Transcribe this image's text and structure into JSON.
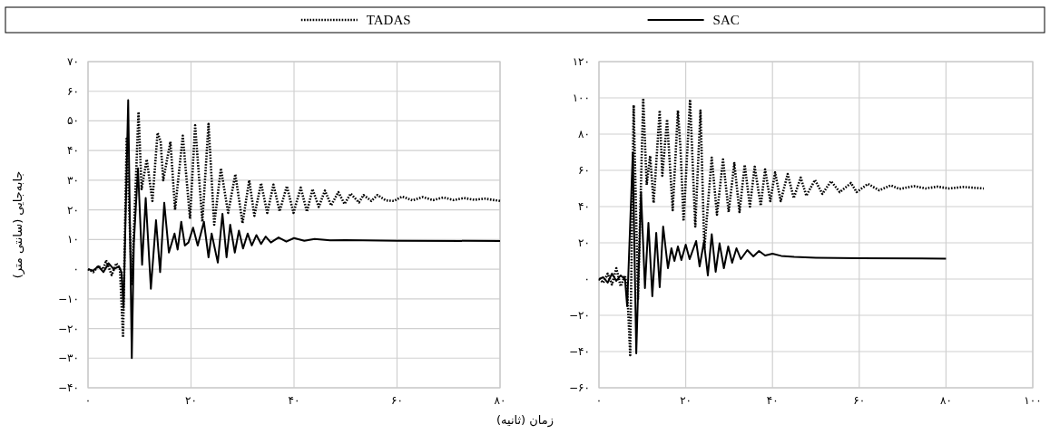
{
  "chart_data": [
    {
      "type": "line",
      "ylabel": "جابه‌جایی (سانتی متر)",
      "xlabel": "زمان (ثانیه)",
      "legend": "top",
      "grid": true,
      "marker": "none",
      "xlim": [
        0,
        80
      ],
      "xticks": [
        {
          "value": 0,
          "label": "۰"
        },
        {
          "value": 20,
          "label": "۲۰"
        },
        {
          "value": 40,
          "label": "۴۰"
        },
        {
          "value": 60,
          "label": "۶۰"
        },
        {
          "value": 80,
          "label": "۸۰"
        }
      ],
      "ylim": [
        -40,
        70
      ],
      "yticks": [
        {
          "value": -40,
          "label": "−۴۰"
        },
        {
          "value": -30,
          "label": "−۳۰"
        },
        {
          "value": -20,
          "label": "−۲۰"
        },
        {
          "value": -10,
          "label": "−۱۰"
        },
        {
          "value": 0,
          "label": "۰"
        },
        {
          "value": 10,
          "label": "۱۰"
        },
        {
          "value": 20,
          "label": "۲۰"
        },
        {
          "value": 30,
          "label": "۳۰"
        },
        {
          "value": 40,
          "label": "۴۰"
        },
        {
          "value": 50,
          "label": "۵۰"
        },
        {
          "value": 60,
          "label": "۶۰"
        },
        {
          "value": 70,
          "label": "۷۰"
        }
      ],
      "series": [
        {
          "name": "TADAS",
          "color": "#000000",
          "line_style": "dotted",
          "x": [
            0,
            1,
            2,
            3,
            3.5,
            4.6,
            5.5,
            6.2,
            6.8,
            7.5,
            8.5,
            9.8,
            10.4,
            11.4,
            12.5,
            13.5,
            14.1,
            14.6,
            16,
            16.9,
            18.4,
            19.8,
            20.8,
            22.2,
            23.4,
            24.5,
            25.8,
            27.2,
            28.6,
            30,
            31.3,
            32.3,
            33.6,
            34.8,
            36,
            37.2,
            38.6,
            39.9,
            41.3,
            42.5,
            43.6,
            44.8,
            46,
            47.2,
            48.6,
            49.8,
            51,
            52.6,
            53.5,
            55,
            56.2,
            57.8,
            59.4,
            61,
            63,
            65,
            67,
            69,
            71,
            73,
            75,
            77,
            80
          ],
          "values": [
            0,
            -1,
            1,
            0,
            3,
            -2,
            2,
            0,
            -23,
            44,
            -5,
            53,
            27,
            37,
            23,
            46,
            43,
            30,
            43,
            20,
            45,
            17,
            48.5,
            16,
            49,
            15,
            34,
            19,
            32,
            15.5,
            30,
            18,
            29,
            19,
            28.5,
            19.5,
            28,
            19,
            27.5,
            19.4,
            27,
            21,
            26.5,
            21.5,
            26,
            22,
            25.5,
            22.5,
            25,
            23,
            25,
            23.2,
            23,
            24.5,
            23.2,
            24.3,
            23.3,
            24.2,
            23.3,
            24,
            23.4,
            23.8,
            23
          ]
        },
        {
          "name": "SAC",
          "color": "#000000",
          "line_style": "solid",
          "x": [
            0,
            1,
            2,
            3,
            4,
            5,
            6,
            6.5,
            6.9,
            7.8,
            8.5,
            8.9,
            9.7,
            10.5,
            11.2,
            12.2,
            13.2,
            14,
            14.8,
            15.7,
            16.8,
            17.4,
            18.1,
            18.8,
            19.5,
            20.4,
            21.3,
            22.5,
            23.4,
            24,
            25.2,
            26.1,
            26.9,
            27.6,
            28.5,
            29.3,
            30.1,
            31,
            31.8,
            32.7,
            33.6,
            34.5,
            35.5,
            37,
            38.5,
            40,
            42,
            44,
            47,
            50,
            60,
            80
          ],
          "values": [
            0,
            -0.5,
            1,
            -1,
            2,
            0,
            1,
            -1,
            -13,
            57,
            -30,
            9,
            34,
            1.5,
            24,
            -6.6,
            16.5,
            -1,
            22.4,
            5.6,
            12,
            6.6,
            16,
            8,
            9,
            14,
            8,
            16,
            4,
            12,
            2.2,
            18.7,
            4,
            15,
            5.6,
            13,
            7,
            12,
            8,
            11.5,
            8.5,
            11,
            9,
            10.7,
            9.3,
            10.5,
            9.6,
            10.2,
            9.7,
            9.8,
            9.6,
            9.5
          ]
        }
      ]
    },
    {
      "type": "line",
      "grid": true,
      "marker": "none",
      "xlim": [
        0,
        100
      ],
      "xticks": [
        {
          "value": 0,
          "label": "۰"
        },
        {
          "value": 20,
          "label": "۲۰"
        },
        {
          "value": 40,
          "label": "۴۰"
        },
        {
          "value": 60,
          "label": "۶۰"
        },
        {
          "value": 80,
          "label": "۸۰"
        },
        {
          "value": 100,
          "label": "۱۰۰"
        }
      ],
      "ylim": [
        -60,
        120
      ],
      "yticks": [
        {
          "value": -60,
          "label": "−۶۰"
        },
        {
          "value": -40,
          "label": "−۴۰"
        },
        {
          "value": -20,
          "label": "−۲۰"
        },
        {
          "value": 0,
          "label": "۰"
        },
        {
          "value": 20,
          "label": "۲۰"
        },
        {
          "value": 40,
          "label": "۴۰"
        },
        {
          "value": 60,
          "label": "۶۰"
        },
        {
          "value": 80,
          "label": "۸۰"
        },
        {
          "value": 100,
          "label": "۱۰۰"
        },
        {
          "value": 120,
          "label": "۱۲۰"
        }
      ],
      "series": [
        {
          "color": "#000000",
          "line_style": "dotted",
          "x": [
            0,
            1,
            2,
            3,
            4,
            5,
            6,
            6.5,
            7.2,
            8,
            9,
            10.2,
            11,
            11.8,
            12.6,
            14,
            14.6,
            15.7,
            17,
            18.2,
            18.8,
            19.5,
            21,
            22.2,
            23.4,
            24.3,
            26,
            27.2,
            28.6,
            29.9,
            31.2,
            32.4,
            33.6,
            34.8,
            35.9,
            37.3,
            38.3,
            39.5,
            40.6,
            41.9,
            43.5,
            44.9,
            46.5,
            47.8,
            49.8,
            51.5,
            53.5,
            55.5,
            58.1,
            59.4,
            62,
            64.6,
            67.3,
            69.3,
            72.6,
            75.3,
            78,
            80.7,
            84,
            88.7
          ],
          "values": [
            0,
            -2,
            3,
            -3,
            6,
            -4,
            2,
            -5,
            -42,
            96,
            -11,
            99.7,
            52,
            68,
            42,
            93,
            57,
            88,
            38,
            93,
            72,
            32,
            99,
            29,
            93,
            17,
            67,
            35.5,
            66,
            37,
            64,
            37,
            63,
            40,
            62,
            40.5,
            60.5,
            43,
            58.8,
            43,
            58,
            44.7,
            56,
            46,
            54.7,
            47,
            54,
            48,
            53,
            48,
            52.5,
            49,
            51.7,
            49.7,
            51.3,
            50,
            51,
            50,
            50.8,
            50
          ]
        },
        {
          "color": "#000000",
          "line_style": "solid",
          "x": [
            0,
            1,
            2,
            3,
            4,
            5,
            6,
            6.5,
            7.8,
            8.6,
            9.7,
            10.6,
            11.4,
            12.3,
            13.2,
            14,
            14.8,
            15.9,
            16.7,
            17.4,
            18.2,
            19,
            20,
            20.9,
            22.4,
            23.2,
            24.2,
            25.1,
            26,
            26.9,
            27.8,
            28.8,
            29.8,
            30.7,
            31.7,
            32.7,
            34.2,
            35.6,
            36.9,
            38.3,
            40,
            42,
            45,
            50,
            60,
            80
          ],
          "values": [
            0,
            1,
            -2,
            3,
            -1,
            2,
            0,
            -15,
            69.7,
            -41,
            48,
            -5,
            31,
            -9.5,
            25.5,
            -4.5,
            29,
            6,
            17,
            10,
            18,
            10.5,
            19,
            11,
            21,
            7,
            20.5,
            2,
            24.7,
            4,
            19.7,
            6,
            18,
            9,
            17,
            11,
            16,
            12.5,
            15.5,
            13,
            14,
            12.8,
            12.2,
            11.8,
            11.5,
            11.3
          ]
        }
      ]
    }
  ]
}
